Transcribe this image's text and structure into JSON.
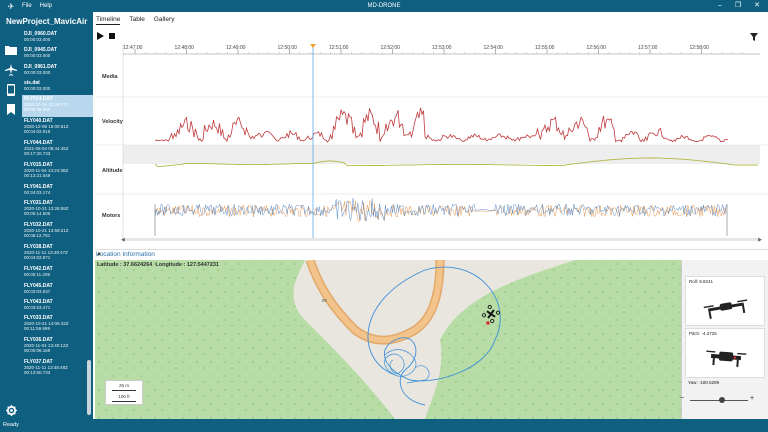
{
  "window": {
    "app_icon": "drone-icon",
    "menu": [
      "File",
      "Help"
    ],
    "title": "MD-DRONE",
    "controls": [
      "minimize",
      "restore",
      "close"
    ]
  },
  "project": {
    "name": "NewProject_MavicAir"
  },
  "nav": [
    "folder-icon",
    "airplane-icon",
    "phone-icon",
    "bookmark-icon",
    "gear-icon"
  ],
  "files": [
    {
      "name": "DJI_0960.DAT",
      "date": "",
      "duration": "00:00:03.000"
    },
    {
      "name": "DJI_0945.DAT",
      "date": "",
      "duration": "00:00:03.000"
    },
    {
      "name": "DJI_0961.DAT",
      "date": "",
      "duration": "00:00:03.000"
    },
    {
      "name": "sis.dat",
      "date": "",
      "duration": "00:00:03.000"
    },
    {
      "name": "FLY014.DAT",
      "date": "2020-10-18 12:49:47Z",
      "duration": "00:09:48.000",
      "selected": true
    },
    {
      "name": "FLY040.DAT",
      "date": "2020-12-08 15:00:51Z",
      "duration": "00:04:02.918"
    },
    {
      "name": "FLY044.DAT",
      "date": "2021-06-04 09:44:45Z",
      "duration": "00:17:20.733"
    },
    {
      "name": "FLY015.DAT",
      "date": "2020-11-04 13:24:38Z",
      "duration": "00:13:21.049"
    },
    {
      "name": "FLY041.DAT",
      "date": "",
      "duration": "00:34:03.174"
    },
    {
      "name": "FLY031.DAT",
      "date": "2020-10-21 13:26:58Z",
      "duration": "00:05:14.605"
    },
    {
      "name": "FLY032.DAT",
      "date": "2020-10-21 13:59:21Z",
      "duration": "00:06:12.761"
    },
    {
      "name": "FLY038.DAT",
      "date": "2020-11-11 13:49:47Z",
      "duration": "00:04:03.871"
    },
    {
      "name": "FLY042.DAT",
      "date": "",
      "duration": "00:05:11.208"
    },
    {
      "name": "FLY045.DAT",
      "date": "",
      "duration": "00:03:03.037"
    },
    {
      "name": "FLY043.DAT",
      "date": "",
      "duration": "00:03:53.471"
    },
    {
      "name": "FLY033.DAT",
      "date": "2020-10-21 14:06:42Z",
      "duration": "00:11:59.999"
    },
    {
      "name": "FLY036.DAT",
      "date": "2020-11-04 13:40:12Z",
      "duration": "00:00:06.169"
    },
    {
      "name": "FLY037.DAT",
      "date": "2020-11-11 13:45:48Z",
      "duration": "00:13:50.733"
    }
  ],
  "tabs": [
    "Timeline",
    "Table",
    "Gallery"
  ],
  "active_tab": "Timeline",
  "toolbar": {
    "play": "play-icon",
    "stop": "stop-icon",
    "filter": "filter-icon"
  },
  "timeline": {
    "rows": [
      "Media",
      "Velocity",
      "Altitude",
      "Motors"
    ],
    "ticks": [
      "12:47:00",
      "12:48:00",
      "12:49:00",
      "12:50:00",
      "12:51:00",
      "12:52:00",
      "12:53:00",
      "12:54:00",
      "12:55:00",
      "12:56:00",
      "12:57:00",
      "12:58:00"
    ],
    "cursor_time": "12:50:37",
    "colors": {
      "velocity": "#c0393b",
      "altitude": "#b5b84a",
      "motor1": "#4a7fc0",
      "motor2": "#e08a3c",
      "cursor": "#5aa9e6"
    }
  },
  "location": {
    "header": "Location Information",
    "latitude_label": "Latitude :",
    "latitude": "37.6624264",
    "longitude_label": "Longitude :",
    "longitude": "127.5447231",
    "road_label": "86",
    "scale_m": "25 m",
    "scale_ft": "100 ft"
  },
  "attitude": {
    "roll_label": "Roll: 9.8241",
    "pitch_label": "Pitch: -4.2725",
    "yaw_label": "Yaw: -180.5289",
    "zoom_minus": "−",
    "zoom_plus": "+",
    "zoom_level": 0.55
  },
  "status": {
    "text": "Ready"
  }
}
